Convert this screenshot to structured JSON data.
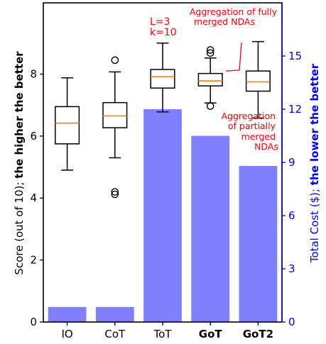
{
  "chart_data": {
    "type": "box+bar",
    "categories": [
      "IO",
      "CoT",
      "ToT",
      "GoT",
      "GoT2"
    ],
    "bold_categories": [
      "GoT",
      "GoT2"
    ],
    "left_axis": {
      "label_plain": "Score (out of 10); ",
      "label_bold": "the higher the better",
      "ylim": [
        0,
        10.3
      ],
      "ticks": [
        0,
        2,
        4,
        6,
        8
      ],
      "color": "#000000"
    },
    "right_axis": {
      "label_plain": "Total Cost ($); ",
      "label_bold": "the lower the better",
      "ylim": [
        0,
        18.0
      ],
      "ticks": [
        0,
        3,
        6,
        9,
        12,
        15
      ],
      "color": "#0000ff"
    },
    "bars": {
      "series": "Total Cost ($)",
      "color": "#8080ff",
      "values": [
        0.85,
        0.85,
        12.0,
        10.5,
        8.8
      ]
    },
    "boxes": [
      {
        "category": "IO",
        "whisker_low": 4.9,
        "q1": 5.75,
        "median": 6.42,
        "q3": 6.95,
        "whisker_high": 7.88,
        "outliers": []
      },
      {
        "category": "CoT",
        "whisker_low": 5.3,
        "q1": 6.27,
        "median": 6.65,
        "q3": 7.08,
        "whisker_high": 8.07,
        "outliers": [
          8.45,
          4.2,
          4.12
        ]
      },
      {
        "category": "ToT",
        "whisker_low": 6.78,
        "q1": 7.55,
        "median": 7.92,
        "q3": 8.15,
        "whisker_high": 9.0,
        "outliers": []
      },
      {
        "category": "GoT",
        "whisker_low": 7.07,
        "q1": 7.62,
        "median": 7.78,
        "q3": 8.02,
        "whisker_high": 8.52,
        "outliers": [
          8.78,
          8.68,
          6.97
        ]
      },
      {
        "category": "GoT2",
        "whisker_low": 6.58,
        "q1": 7.45,
        "median": 7.75,
        "q3": 8.1,
        "whisker_high": 9.05,
        "outliers": []
      }
    ],
    "box_style": {
      "stroke": "#000000",
      "median_color": "#ff7f0e"
    },
    "annotations": [
      {
        "lines": [
          "L=3",
          "k=10"
        ],
        "color": "#ff0000"
      },
      {
        "lines": [
          "Aggregation of fully",
          "merged NDAs"
        ],
        "color": "#ff0000"
      },
      {
        "lines": [
          "Aggregation",
          "of partially",
          "merged",
          "NDAs"
        ],
        "color": "#ff0000"
      }
    ]
  }
}
